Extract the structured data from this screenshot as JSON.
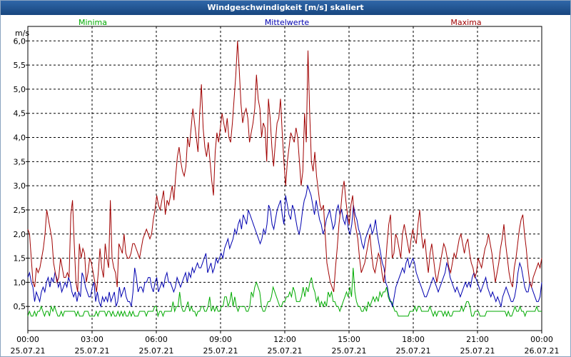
{
  "window": {
    "title": "Windgeschwindigkeit [m/s] skaliert"
  },
  "chart_data": {
    "type": "line",
    "title": "Windgeschwindigkeit [m/s] skaliert",
    "ylabel": "m/s",
    "ylim": [
      0,
      6.3
    ],
    "xlim_hours": [
      0,
      24
    ],
    "y_ticks": [
      "0,5",
      "1,0",
      "1,5",
      "2,0",
      "2,5",
      "3,0",
      "3,5",
      "4,0",
      "4,5",
      "5,0",
      "5,5",
      "6,0"
    ],
    "x_ticks": [
      {
        "time": "00:00",
        "date": "25.07.21"
      },
      {
        "time": "03:00",
        "date": "25.07.21"
      },
      {
        "time": "06:00",
        "date": "25.07.21"
      },
      {
        "time": "09:00",
        "date": "25.07.21"
      },
      {
        "time": "12:00",
        "date": "25.07.21"
      },
      {
        "time": "15:00",
        "date": "25.07.21"
      },
      {
        "time": "18:00",
        "date": "25.07.21"
      },
      {
        "time": "21:00",
        "date": "25.07.21"
      },
      {
        "time": "00:00",
        "date": "26.07.21"
      }
    ],
    "grid": true,
    "legend_position": "top",
    "series": [
      {
        "name": "Minima",
        "color": "#00aa00",
        "values": [
          0.3,
          0.4,
          0.3,
          0.3,
          0.4,
          0.3,
          0.4,
          0.4,
          0.5,
          0.4,
          0.3,
          0.4,
          0.4,
          0.3,
          0.5,
          0.4,
          0.5,
          0.4,
          0.3,
          0.3,
          0.4,
          0.3,
          0.4,
          0.4,
          0.4,
          0.4,
          0.4,
          0.4,
          0.4,
          0.3,
          0.4,
          0.3,
          0.3,
          0.3,
          0.4,
          0.4,
          0.4,
          0.3,
          0.3,
          0.3,
          0.3,
          0.4,
          0.3,
          0.4,
          0.4,
          0.4,
          0.4,
          0.3,
          0.4,
          0.4,
          0.3,
          0.4,
          0.3,
          0.3,
          0.4,
          0.3,
          0.4,
          0.3,
          0.4,
          0.3,
          0.3,
          0.4,
          0.3,
          0.4,
          0.3,
          0.3,
          0.3,
          0.4,
          0.4,
          0.4,
          0.4,
          0.3,
          0.4,
          0.4,
          0.4,
          0.4,
          0.5,
          0.5,
          0.3,
          0.4,
          0.4,
          0.3,
          0.4,
          0.4,
          0.4,
          0.4,
          0.4,
          0.6,
          0.4,
          0.5,
          0.5,
          0.8,
          0.5,
          0.4,
          0.4,
          0.5,
          0.6,
          0.4,
          0.5,
          0.4,
          0.4,
          0.3,
          0.4,
          0.4,
          0.5,
          0.5,
          0.4,
          0.4,
          0.5,
          0.7,
          0.4,
          0.5,
          0.4,
          0.5,
          0.4,
          0.4,
          0.5,
          0.5,
          0.7,
          0.7,
          0.5,
          0.6,
          0.8,
          0.5,
          0.7,
          0.5,
          0.4,
          0.5,
          0.5,
          0.5,
          0.5,
          0.4,
          0.4,
          0.5,
          0.8,
          0.7,
          0.9,
          1.0,
          0.9,
          0.8,
          0.5,
          0.4,
          0.4,
          0.5,
          0.6,
          0.6,
          0.7,
          0.9,
          0.8,
          0.7,
          0.6,
          0.5,
          0.5,
          0.6,
          0.6,
          0.7,
          0.7,
          0.8,
          0.7,
          0.9,
          0.8,
          0.6,
          0.6,
          0.6,
          0.7,
          0.9,
          0.7,
          0.9,
          0.8,
          1.0,
          1.1,
          0.9,
          0.8,
          0.6,
          0.7,
          0.5,
          0.6,
          0.5,
          0.6,
          0.5,
          0.8,
          0.7,
          0.8,
          0.6,
          0.6,
          0.5,
          0.5,
          0.4,
          0.5,
          0.6,
          0.7,
          0.8,
          0.7,
          0.9,
          0.7,
          1.3,
          0.8,
          0.6,
          0.5,
          0.5,
          0.4,
          0.4,
          0.5,
          0.4,
          0.6,
          0.5,
          0.6,
          0.7,
          0.6,
          0.7,
          0.6,
          0.8,
          0.7,
          0.8,
          0.8,
          0.9,
          0.7,
          0.6,
          0.6,
          0.5,
          0.4,
          0.4,
          0.3,
          0.3,
          0.3,
          0.3,
          0.3,
          0.3,
          0.3,
          0.4,
          0.4,
          0.4,
          0.5,
          0.4,
          0.5,
          0.5,
          0.4,
          0.4,
          0.4,
          0.4,
          0.4,
          0.5,
          0.4,
          0.3,
          0.4,
          0.3,
          0.4,
          0.4,
          0.4,
          0.3,
          0.4,
          0.3,
          0.4,
          0.3,
          0.3,
          0.4,
          0.4,
          0.4,
          0.4,
          0.4,
          0.5,
          0.4,
          0.5,
          0.6,
          0.6,
          0.5,
          0.3,
          0.3,
          0.4,
          0.4,
          0.4,
          0.3,
          0.3,
          0.3,
          0.3,
          0.4,
          0.4,
          0.4,
          0.4,
          0.4,
          0.4,
          0.4,
          0.4,
          0.4,
          0.4,
          0.4,
          0.4,
          0.3,
          0.4,
          0.3,
          0.3,
          0.4,
          0.5,
          0.4,
          0.4,
          0.5,
          0.4,
          0.4,
          0.3,
          0.4,
          0.4,
          0.4,
          0.4,
          0.4,
          0.4,
          0.5,
          0.4,
          0.4,
          0.4
        ]
      },
      {
        "name": "Mittelwerte",
        "color": "#0000b0",
        "values": [
          1.1,
          1.2,
          1.0,
          0.9,
          0.6,
          0.8,
          0.7,
          0.6,
          0.8,
          0.9,
          0.8,
          1.0,
          1.1,
          0.9,
          1.1,
          1.0,
          1.2,
          1.1,
          0.9,
          1.0,
          0.8,
          0.9,
          1.0,
          0.9,
          1.1,
          1.0,
          0.8,
          0.7,
          0.8,
          0.6,
          0.8,
          0.7,
          1.2,
          1.1,
          0.9,
          0.8,
          0.7,
          0.7,
          0.9,
          1.0,
          0.6,
          0.8,
          0.6,
          0.5,
          0.7,
          0.6,
          0.7,
          0.6,
          0.8,
          0.6,
          0.7,
          0.8,
          0.5,
          0.6,
          0.9,
          0.7,
          0.8,
          0.9,
          0.7,
          0.6,
          0.6,
          0.5,
          0.8,
          1.3,
          1.1,
          0.8,
          0.9,
          0.9,
          0.8,
          1.0,
          1.0,
          1.1,
          1.1,
          0.9,
          0.8,
          1.0,
          1.1,
          0.8,
          0.9,
          1.0,
          0.9,
          1.1,
          1.2,
          1.0,
          1.0,
          0.9,
          0.8,
          0.9,
          1.1,
          1.0,
          0.9,
          1.0,
          1.1,
          1.2,
          1.0,
          1.2,
          1.1,
          1.3,
          1.2,
          1.3,
          1.4,
          1.3,
          1.3,
          1.4,
          1.5,
          1.6,
          1.2,
          1.3,
          1.4,
          1.2,
          1.3,
          1.5,
          1.4,
          1.5,
          1.6,
          1.5,
          1.7,
          1.8,
          1.9,
          1.7,
          1.8,
          1.9,
          2.1,
          2.0,
          2.2,
          2.3,
          2.1,
          2.4,
          2.3,
          2.2,
          2.5,
          2.4,
          2.3,
          2.2,
          2.1,
          2.0,
          1.9,
          1.8,
          1.9,
          2.1,
          2.0,
          2.2,
          2.6,
          2.5,
          2.2,
          2.1,
          2.3,
          2.5,
          2.6,
          2.7,
          2.4,
          2.2,
          2.8,
          2.6,
          2.4,
          2.3,
          2.6,
          2.5,
          2.3,
          2.1,
          2.0,
          2.2,
          2.5,
          2.7,
          2.8,
          3.0,
          2.9,
          2.8,
          2.6,
          2.4,
          2.7,
          2.5,
          2.3,
          2.2,
          2.0,
          2.1,
          2.3,
          2.4,
          2.5,
          2.3,
          2.1,
          2.2,
          2.5,
          2.6,
          2.4,
          2.5,
          2.3,
          2.2,
          2.4,
          2.1,
          2.0,
          2.2,
          2.6,
          2.4,
          2.3,
          2.1,
          2.0,
          1.8,
          1.7,
          1.9,
          2.0,
          2.1,
          2.2,
          2.0,
          2.1,
          2.3,
          2.0,
          1.8,
          1.6,
          1.4,
          1.3,
          1.0,
          0.9,
          0.7,
          0.6,
          0.5,
          0.7,
          0.9,
          1.0,
          1.1,
          1.2,
          1.3,
          1.2,
          1.4,
          1.5,
          1.3,
          1.4,
          1.5,
          1.4,
          1.2,
          1.1,
          1.0,
          0.9,
          0.8,
          0.7,
          0.7,
          0.8,
          0.9,
          1.0,
          1.1,
          1.0,
          0.9,
          0.8,
          0.9,
          1.0,
          1.1,
          1.2,
          1.4,
          1.3,
          1.1,
          1.0,
          0.9,
          0.8,
          0.9,
          0.8,
          0.7,
          0.8,
          0.9,
          1.0,
          0.9,
          1.0,
          0.9,
          1.1,
          1.2,
          1.1,
          1.0,
          0.9,
          0.8,
          0.9,
          1.0,
          1.1,
          0.9,
          0.8,
          0.7,
          0.8,
          0.7,
          0.6,
          0.7,
          0.6,
          0.5,
          0.7,
          0.8,
          0.9,
          0.8,
          0.7,
          0.6,
          0.6,
          0.7,
          0.9,
          1.2,
          1.4,
          1.3,
          1.1,
          0.9,
          0.8,
          0.8,
          1.0,
          0.9,
          0.8,
          0.7,
          0.6,
          0.6,
          0.7,
          1.0
        ]
      },
      {
        "name": "Maxima",
        "color": "#a00000",
        "values": [
          2.1,
          2.0,
          1.5,
          1.0,
          0.9,
          1.3,
          1.2,
          1.3,
          1.5,
          1.7,
          2.0,
          2.5,
          2.3,
          2.1,
          1.9,
          1.4,
          1.2,
          1.0,
          1.1,
          1.5,
          1.3,
          1.1,
          1.1,
          1.2,
          1.1,
          2.4,
          2.7,
          1.8,
          1.0,
          0.8,
          1.8,
          1.5,
          1.7,
          1.6,
          1.0,
          1.2,
          1.5,
          1.4,
          1.2,
          1.0,
          0.8,
          1.2,
          1.7,
          1.3,
          1.1,
          1.8,
          1.5,
          1.3,
          2.7,
          1.5,
          1.3,
          1.2,
          0.9,
          1.8,
          1.7,
          1.6,
          2.0,
          1.6,
          1.5,
          1.5,
          1.6,
          1.8,
          1.8,
          1.7,
          1.6,
          1.5,
          1.7,
          1.9,
          2.0,
          2.1,
          2.0,
          1.9,
          2.0,
          2.3,
          2.5,
          2.8,
          2.6,
          2.5,
          2.7,
          2.9,
          2.4,
          2.7,
          2.6,
          2.8,
          3.0,
          2.7,
          3.2,
          3.6,
          3.8,
          3.5,
          3.3,
          3.2,
          3.4,
          4.0,
          3.8,
          4.2,
          4.6,
          4.3,
          4.0,
          3.7,
          4.5,
          5.1,
          4.2,
          3.8,
          3.6,
          3.9,
          3.5,
          3.1,
          2.8,
          3.7,
          4.1,
          3.9,
          4.2,
          4.5,
          4.3,
          4.1,
          4.4,
          4.0,
          3.9,
          4.3,
          4.8,
          5.3,
          6.0,
          5.4,
          4.7,
          4.3,
          4.5,
          4.6,
          4.4,
          3.9,
          4.1,
          4.3,
          4.6,
          5.3,
          4.8,
          4.6,
          4.0,
          4.3,
          4.2,
          3.5,
          4.8,
          4.4,
          3.8,
          3.4,
          3.9,
          4.3,
          4.4,
          4.8,
          4.1,
          3.5,
          3.0,
          3.5,
          3.8,
          4.1,
          4.0,
          3.9,
          4.2,
          4.0,
          3.5,
          3.0,
          3.3,
          4.5,
          3.9,
          5.8,
          4.5,
          3.5,
          3.3,
          3.7,
          3.2,
          2.9,
          2.6,
          2.5,
          2.6,
          2.0,
          1.4,
          1.2,
          1.0,
          0.9,
          0.8,
          1.3,
          1.7,
          2.2,
          2.5,
          2.9,
          3.1,
          2.7,
          2.4,
          2.2,
          2.6,
          2.8,
          2.3,
          2.1,
          1.9,
          1.5,
          1.2,
          1.3,
          1.4,
          1.6,
          1.8,
          2.0,
          1.6,
          1.3,
          1.2,
          1.4,
          1.6,
          1.5,
          1.2,
          1.0,
          1.3,
          1.8,
          2.2,
          2.4,
          1.5,
          1.6,
          2.0,
          1.9,
          1.7,
          1.5,
          2.0,
          2.2,
          2.0,
          1.8,
          1.6,
          1.9,
          2.1,
          1.9,
          1.8,
          2.2,
          2.5,
          2.0,
          1.7,
          1.9,
          1.5,
          1.2,
          1.6,
          1.8,
          1.5,
          1.2,
          1.0,
          1.2,
          1.4,
          1.6,
          1.8,
          1.7,
          1.5,
          1.3,
          1.2,
          1.4,
          1.6,
          1.5,
          1.7,
          1.9,
          2.0,
          1.8,
          1.6,
          1.8,
          1.9,
          1.6,
          1.4,
          1.3,
          1.1,
          1.2,
          1.5,
          1.4,
          1.3,
          1.5,
          1.7,
          1.8,
          2.0,
          1.8,
          1.6,
          1.3,
          1.0,
          1.2,
          1.4,
          1.7,
          1.9,
          2.2,
          1.8,
          1.5,
          1.2,
          1.0,
          0.9,
          1.3,
          1.5,
          1.8,
          2.1,
          2.3,
          2.4,
          2.0,
          1.7,
          1.3,
          1.0,
          0.9,
          1.1,
          1.2,
          1.3,
          1.4,
          1.3,
          1.5
        ]
      }
    ]
  }
}
